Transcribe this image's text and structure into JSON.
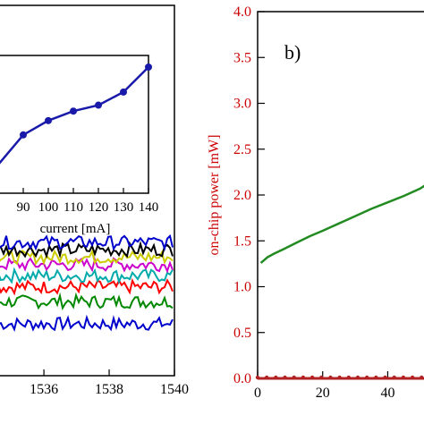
{
  "chart_data": [
    {
      "panel": "a-main (cropped)",
      "type": "line",
      "xlabel": "",
      "ylabel": "",
      "xlim": [
        1534.6,
        1540
      ],
      "ylim": [
        0,
        1
      ],
      "x_ticks": [
        1536,
        1538,
        1540
      ],
      "x_tick_labels": [
        "1536",
        "1538",
        "1540"
      ],
      "colors": [
        "#0000cc",
        "#008800",
        "#ff0000",
        "#00aaaa",
        "#cc00cc",
        "#cccc00",
        "#000000"
      ],
      "series_levels": [
        0.14,
        0.2,
        0.24,
        0.27,
        0.3,
        0.32,
        0.34,
        0.36
      ]
    },
    {
      "panel": "a-inset",
      "type": "line",
      "xlabel": "current [mA]",
      "ylabel": "",
      "xlim": [
        80,
        140
      ],
      "ylim": [
        0,
        1
      ],
      "x_ticks": [
        90,
        100,
        110,
        120,
        130,
        140
      ],
      "series": [
        {
          "x": [
            80,
            90,
            100,
            110,
            120,
            130,
            140
          ],
          "values": [
            0.18,
            0.43,
            0.55,
            0.63,
            0.68,
            0.79,
            1.0
          ]
        }
      ]
    },
    {
      "panel": "b",
      "panel_label": "b)",
      "type": "line",
      "xlabel": "",
      "ylabel": "on-chip power [mW]",
      "xlim": [
        0,
        55
      ],
      "ylim": [
        0,
        4.0
      ],
      "x_ticks": [
        0,
        20,
        40
      ],
      "y_ticks": [
        0.0,
        0.5,
        1.0,
        1.5,
        2.0,
        2.5,
        3.0,
        3.5,
        4.0
      ],
      "y_tick_labels": [
        "0.0",
        "0.5",
        "1.0",
        "1.5",
        "2.0",
        "2.5",
        "3.0",
        "3.5",
        "4.0"
      ],
      "tick_color": "#cc0000",
      "series": [
        {
          "color": "#228B22",
          "x": [
            1,
            2,
            3,
            5,
            8,
            12,
            16,
            20,
            25,
            30,
            35,
            40,
            45,
            50,
            53
          ],
          "values": [
            1.26,
            1.29,
            1.32,
            1.36,
            1.41,
            1.48,
            1.55,
            1.61,
            1.69,
            1.77,
            1.85,
            1.92,
            1.99,
            2.07,
            2.14
          ]
        },
        {
          "color": "#b22222",
          "x": [
            0,
            55
          ],
          "values": [
            0.0,
            0.0
          ]
        }
      ]
    }
  ]
}
